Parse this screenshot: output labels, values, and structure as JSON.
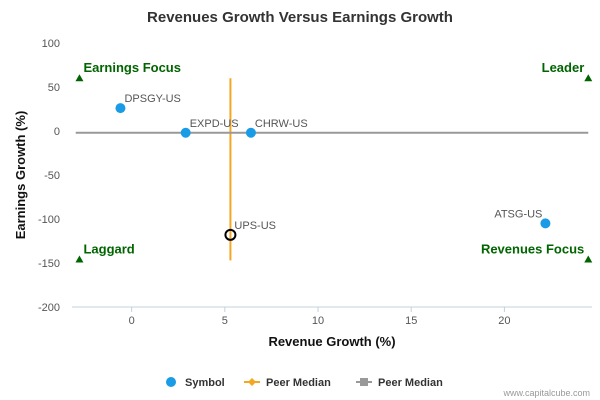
{
  "chart_data": {
    "type": "scatter",
    "title": "Revenues Growth Versus Earnings Growth",
    "xlabel": "Revenue Growth (%)",
    "ylabel": "Earnings Growth (%)",
    "xlim": [
      -3.2,
      24.7
    ],
    "ylim": [
      -200,
      100
    ],
    "x_ticks": [
      0,
      5,
      10,
      15,
      20
    ],
    "y_ticks": [
      100,
      50,
      0,
      -50,
      -100,
      -150,
      -200
    ],
    "grid": false,
    "legend_position": "bottom",
    "series": [
      {
        "name": "Symbol",
        "color": "#1a9be6",
        "points": [
          {
            "label": "DPSGY-US",
            "x": -0.6,
            "y": 26
          },
          {
            "label": "EXPD-US",
            "x": 2.9,
            "y": -2
          },
          {
            "label": "CHRW-US",
            "x": 6.4,
            "y": -2
          },
          {
            "label": "ATSG-US",
            "x": 22.2,
            "y": -105
          }
        ]
      },
      {
        "name": "Peer Median",
        "color": "#f5a623",
        "line": {
          "orientation": "vertical",
          "x": 5.3,
          "y_from": -147,
          "y_to": 60
        }
      },
      {
        "name": "Peer Median",
        "color": "#999999",
        "line": {
          "orientation": "horizontal",
          "y": -2,
          "x_from": -3.0,
          "x_to": 24.5
        }
      }
    ],
    "highlight": {
      "label": "UPS-US",
      "x": 5.3,
      "y": -118
    },
    "quadrants": [
      {
        "label": "Earnings Focus",
        "x": -2.8,
        "y": 60
      },
      {
        "label": "Leader",
        "x": 24.5,
        "y": 60
      },
      {
        "label": "Laggard",
        "x": -2.8,
        "y": -146
      },
      {
        "label": "Revenues Focus",
        "x": 24.5,
        "y": -146
      }
    ],
    "quadrant_color": "#006400"
  },
  "credit": "www.capitalcube.com"
}
